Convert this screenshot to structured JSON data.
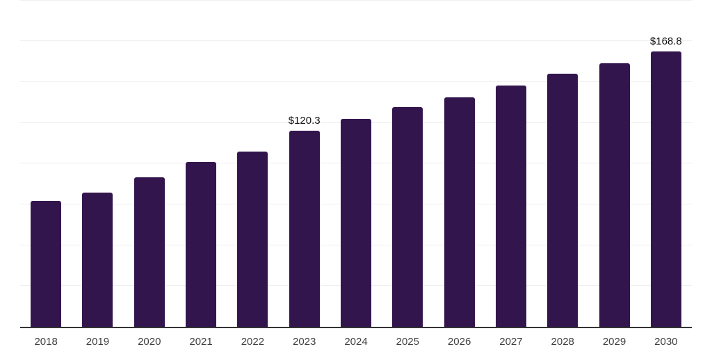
{
  "chart_data": {
    "type": "bar",
    "title": "",
    "categories": [
      "2018",
      "2019",
      "2020",
      "2021",
      "2022",
      "2023",
      "2024",
      "2025",
      "2026",
      "2027",
      "2028",
      "2029",
      "2030"
    ],
    "values": [
      77.3,
      82.1,
      91.7,
      101.1,
      107.2,
      120.3,
      127.4,
      134.5,
      140.6,
      147.8,
      155.2,
      161.6,
      168.8
    ],
    "data_labels": [
      "",
      "",
      "",
      "",
      "",
      "$120.3",
      "",
      "",
      "",
      "",
      "",
      "",
      "$168.8"
    ],
    "xlabel": "",
    "ylabel": "",
    "ylim": [
      0,
      200
    ],
    "grid_interval": 25,
    "gridlines_visible": true,
    "y_axis_labels_visible": false,
    "legend_visible": false,
    "colors": {
      "bar": "#33154E",
      "gridline": "#EFEFEF",
      "axis": "#333333",
      "tick_label": "#3F3F3F",
      "data_label": "#111111",
      "background": "#FFFFFF"
    }
  }
}
